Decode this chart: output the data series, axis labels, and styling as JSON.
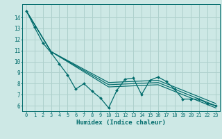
{
  "xlabel": "Humidex (Indice chaleur)",
  "bg_color": "#cde8e5",
  "grid_color": "#aed0cc",
  "line_color": "#006b6b",
  "xlim": [
    -0.5,
    23.5
  ],
  "ylim": [
    5.5,
    15.2
  ],
  "yticks": [
    6,
    7,
    8,
    9,
    10,
    11,
    12,
    13,
    14
  ],
  "xticks": [
    0,
    1,
    2,
    3,
    4,
    5,
    6,
    7,
    8,
    9,
    10,
    11,
    12,
    13,
    14,
    15,
    16,
    17,
    18,
    19,
    20,
    21,
    22,
    23
  ],
  "series1_x": [
    0,
    1,
    2,
    3,
    4,
    5,
    6,
    7,
    8,
    9,
    10,
    11,
    12,
    13,
    14,
    15,
    16,
    17,
    18,
    19,
    20,
    21,
    22,
    23
  ],
  "series1_y": [
    14.6,
    13.1,
    11.7,
    10.8,
    9.8,
    8.8,
    7.5,
    8.0,
    7.3,
    6.7,
    5.8,
    7.4,
    8.4,
    8.5,
    7.0,
    8.3,
    8.6,
    8.2,
    7.5,
    6.6,
    6.6,
    6.6,
    6.2,
    6.0
  ],
  "series2_x": [
    0,
    3,
    10,
    16,
    23
  ],
  "series2_y": [
    14.6,
    10.9,
    8.1,
    8.3,
    6.2
  ],
  "series3_x": [
    0,
    3,
    10,
    16,
    23
  ],
  "series3_y": [
    14.6,
    10.9,
    7.9,
    8.1,
    6.0
  ],
  "series4_x": [
    0,
    3,
    10,
    16,
    23
  ],
  "series4_y": [
    14.6,
    10.9,
    7.7,
    7.9,
    5.8
  ]
}
